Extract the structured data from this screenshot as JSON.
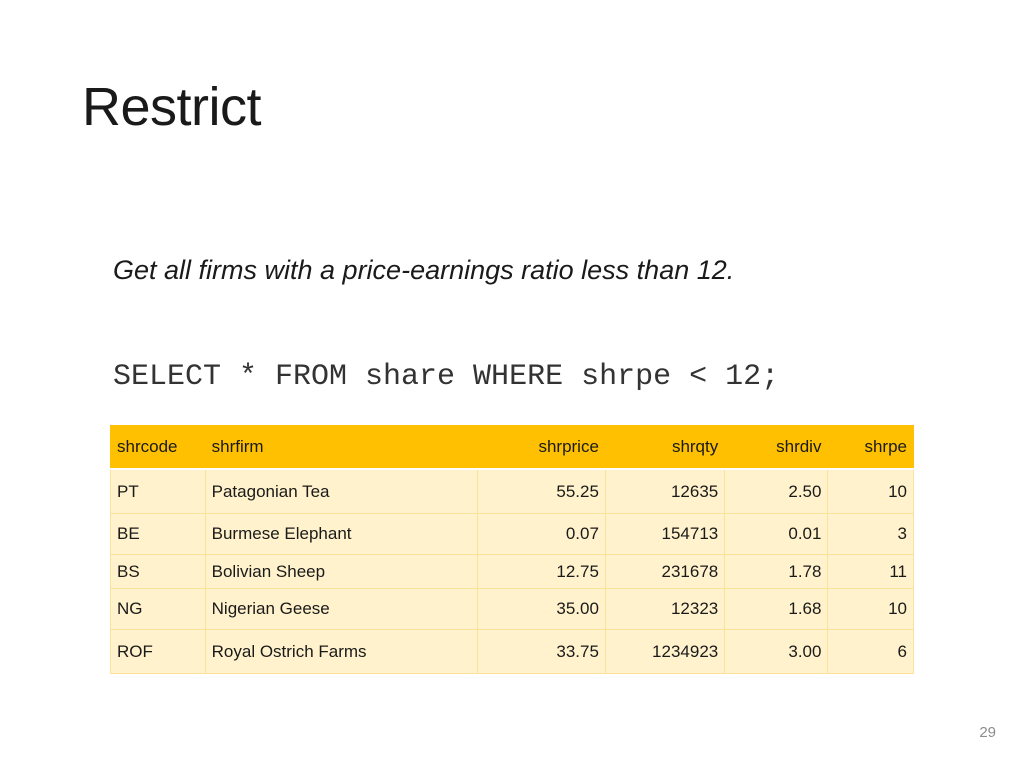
{
  "slide": {
    "title": "Restrict",
    "question": "Get all firms with a price-earnings ratio less than 12.",
    "sql": "SELECT * FROM share WHERE shrpe < 12;",
    "page_number": "29"
  },
  "table": {
    "columns": [
      "shrcode",
      "shrfirm",
      "shrprice",
      "shrqty",
      "shrdiv",
      "shrpe"
    ],
    "rows": [
      [
        "PT",
        "Patagonian Tea",
        "55.25",
        "12635",
        "2.50",
        "10"
      ],
      [
        "BE",
        "Burmese Elephant",
        "0.07",
        "154713",
        "0.01",
        "3"
      ],
      [
        "BS",
        "Bolivian Sheep",
        "12.75",
        "231678",
        "1.78",
        "11"
      ],
      [
        "NG",
        "Nigerian Geese",
        "35.00",
        "12323",
        "1.68",
        "10"
      ],
      [
        "ROF",
        "Royal Ostrich Farms",
        "33.75",
        "1234923",
        "3.00",
        "6"
      ]
    ],
    "header_color": "#fec000",
    "row_color": "#fff2cc"
  }
}
